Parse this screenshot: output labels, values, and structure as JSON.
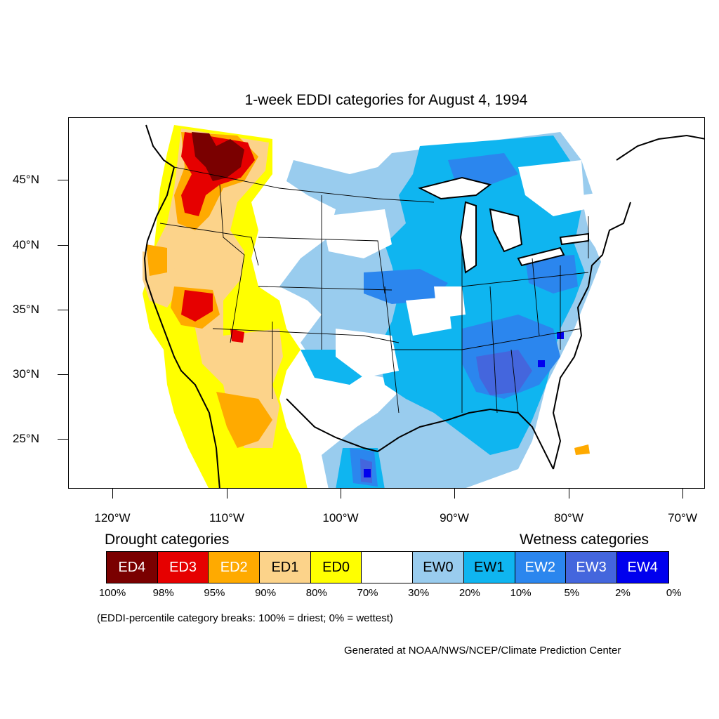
{
  "title": "1-week EDDI categories for August 4, 1994",
  "axes": {
    "lat_labels": [
      "45°N",
      "40°N",
      "35°N",
      "30°N",
      "25°N"
    ],
    "lon_labels": [
      "120°W",
      "110°W",
      "100°W",
      "90°W",
      "80°W",
      "70°W"
    ]
  },
  "legend": {
    "drought_heading": "Drought categories",
    "wetness_heading": "Wetness categories",
    "categories": [
      {
        "label": "ED4",
        "color": "#7a0000",
        "text_color": "#ffffff"
      },
      {
        "label": "ED3",
        "color": "#e60000",
        "text_color": "#ffffff"
      },
      {
        "label": "ED2",
        "color": "#ffaa00",
        "text_color": "#ffffff"
      },
      {
        "label": "ED1",
        "color": "#fcd38a",
        "text_color": "#000000"
      },
      {
        "label": "ED0",
        "color": "#ffff00",
        "text_color": "#000000"
      },
      {
        "label": "",
        "color": "#ffffff",
        "text_color": "#000000"
      },
      {
        "label": "EW0",
        "color": "#99ccee",
        "text_color": "#000000"
      },
      {
        "label": "EW1",
        "color": "#0fb5f0",
        "text_color": "#000000"
      },
      {
        "label": "EW2",
        "color": "#2b86ee",
        "text_color": "#ffffff"
      },
      {
        "label": "EW3",
        "color": "#4466dd",
        "text_color": "#ffffff"
      },
      {
        "label": "EW4",
        "color": "#0000ee",
        "text_color": "#ffffff"
      }
    ],
    "percent_breaks": [
      "100%",
      "98%",
      "95%",
      "90%",
      "80%",
      "70%",
      "30%",
      "20%",
      "10%",
      "5%",
      "2%",
      "0%"
    ]
  },
  "note": "(EDDI-percentile category breaks: 100% = driest; 0% = wettest)",
  "credit": "Generated at NOAA/NWS/NCEP/Climate Prediction Center"
}
